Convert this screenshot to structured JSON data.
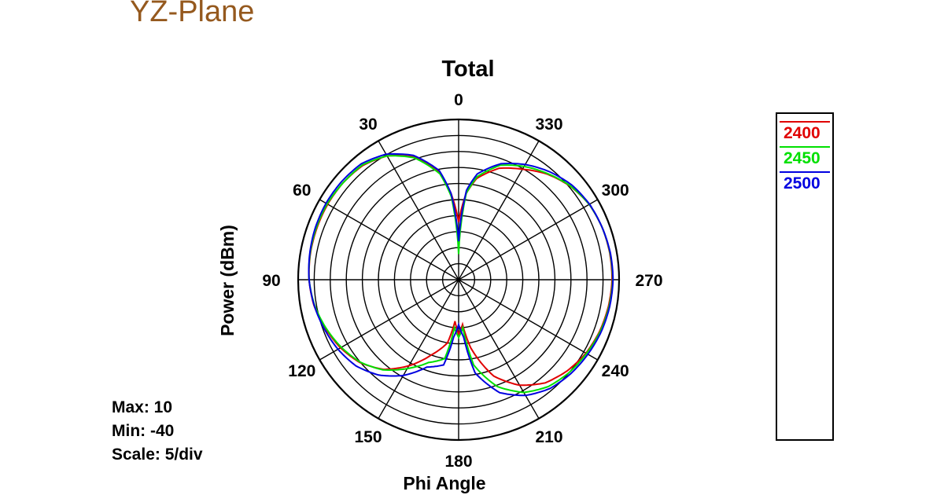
{
  "slide_title": "YZ-Plane",
  "chart_data": {
    "type": "polar",
    "title": "Total",
    "xlabel": "Phi Angle",
    "ylabel": "Power  (dBm)",
    "r_max": 10,
    "r_min": -40,
    "r_step": 5,
    "angle_ticks": [
      "0",
      "30",
      "60",
      "90",
      "120",
      "150",
      "180",
      "210",
      "240",
      "270",
      "300",
      "330"
    ],
    "angle_tick_values": [
      0,
      30,
      60,
      90,
      120,
      150,
      180,
      210,
      240,
      270,
      300,
      330
    ],
    "angle_direction": "counterclockwise",
    "zero_location": "top",
    "stats": {
      "max": "Max: 10",
      "min": "Min: -40",
      "scale": "Scale: 5/div"
    },
    "series": [
      {
        "name": "2400",
        "color": "#e00000",
        "phi": [
          0,
          5,
          10,
          20,
          30,
          40,
          50,
          60,
          70,
          80,
          90,
          100,
          110,
          120,
          130,
          140,
          150,
          160,
          170,
          175,
          180,
          185,
          190,
          200,
          210,
          220,
          230,
          240,
          250,
          260,
          270,
          280,
          290,
          300,
          310,
          320,
          330,
          340,
          350,
          355,
          360
        ],
        "power": [
          -22,
          -13,
          -6,
          0.8,
          4.6,
          6.5,
          7.0,
          7.1,
          7.0,
          6.9,
          6.6,
          5.8,
          4.2,
          2.5,
          0.2,
          -3.5,
          -9.0,
          -15.0,
          -20.0,
          -27,
          -23,
          -26,
          -18.5,
          -8.0,
          -2.0,
          2.0,
          4.2,
          5.8,
          6.8,
          7.4,
          7.8,
          7.8,
          7.6,
          7.0,
          5.4,
          3.0,
          -0.2,
          -3.0,
          -8.0,
          -13,
          -22
        ]
      },
      {
        "name": "2450",
        "color": "#00e000",
        "phi": [
          0,
          5,
          10,
          20,
          30,
          40,
          50,
          60,
          70,
          80,
          90,
          100,
          110,
          120,
          130,
          140,
          150,
          160,
          170,
          175,
          180,
          185,
          190,
          200,
          210,
          220,
          230,
          240,
          250,
          260,
          270,
          280,
          290,
          300,
          310,
          320,
          330,
          340,
          350,
          355,
          360
        ],
        "power": [
          -32,
          -14,
          -6.5,
          0.5,
          4.6,
          6.7,
          7.0,
          7.3,
          7.2,
          7.0,
          6.6,
          5.6,
          4.0,
          2.2,
          0.0,
          -3.3,
          -8.0,
          -12.5,
          -15.0,
          -25,
          -22,
          -25,
          -13.0,
          -4.5,
          0.6,
          3.5,
          5.0,
          6.0,
          7.0,
          7.6,
          8.0,
          7.9,
          7.6,
          7.0,
          5.5,
          3.2,
          0.8,
          -2.0,
          -7.5,
          -13,
          -32
        ]
      },
      {
        "name": "2500",
        "color": "#0000e0",
        "phi": [
          0,
          5,
          10,
          20,
          30,
          40,
          50,
          60,
          70,
          80,
          90,
          100,
          110,
          120,
          130,
          140,
          150,
          160,
          170,
          175,
          180,
          185,
          190,
          200,
          210,
          220,
          230,
          240,
          250,
          260,
          270,
          280,
          290,
          300,
          310,
          320,
          330,
          340,
          350,
          355,
          360
        ],
        "power": [
          -28,
          -13,
          -5.5,
          1.3,
          5.2,
          7.2,
          7.6,
          7.7,
          7.5,
          7.1,
          6.6,
          5.7,
          4.6,
          3.4,
          1.8,
          -1.2,
          -5.5,
          -11.0,
          -13.0,
          -22,
          -26,
          -22,
          -10.5,
          -2.5,
          1.7,
          4.3,
          5.6,
          6.5,
          7.3,
          7.8,
          8.1,
          8.0,
          7.6,
          7.1,
          6.0,
          4.0,
          1.5,
          -1.5,
          -6.5,
          -12,
          -28
        ]
      }
    ],
    "legend_position": "right"
  }
}
